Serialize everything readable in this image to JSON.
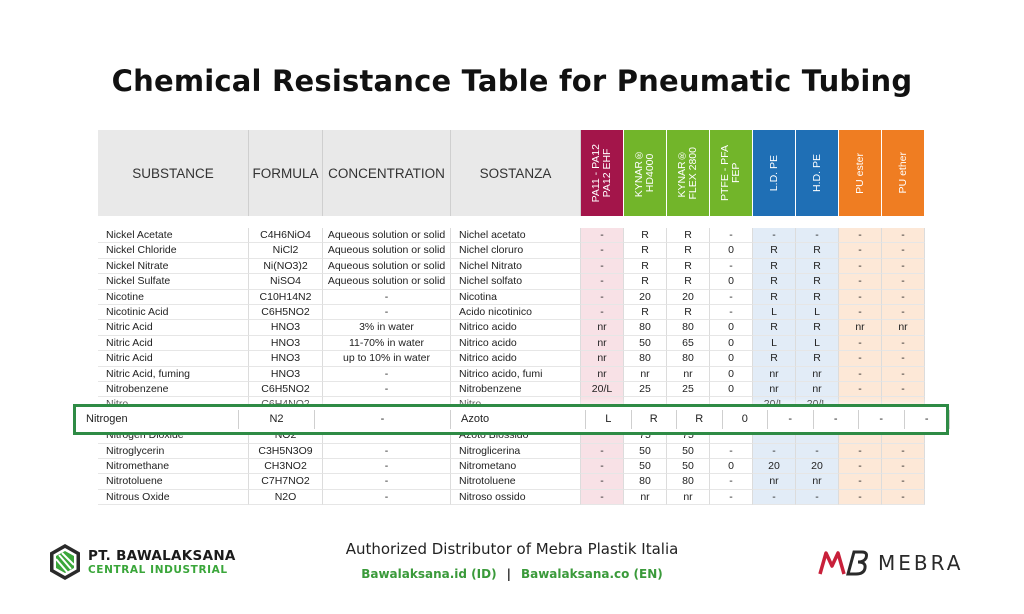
{
  "title": "Chemical Resistance Table for Pneumatic Tubing",
  "headers": {
    "substance": "SUBSTANCE",
    "formula": "FORMULA",
    "concentration": "CONCENTRATION",
    "sostanza": "SOSTANZA",
    "materials": [
      {
        "label": "PA11 - PA12\nPA12 EHF",
        "color": "#a3154a"
      },
      {
        "label": "KYNAR®\nHD4000",
        "color": "#72b52a"
      },
      {
        "label": "KYNAR®\nFLEX 2800",
        "color": "#72b52a"
      },
      {
        "label": "PTFE - PFA\nFEP",
        "color": "#72b52a"
      },
      {
        "label": "L.D. PE",
        "color": "#1f6fb5"
      },
      {
        "label": "H.D. PE",
        "color": "#1f6fb5"
      },
      {
        "label": "PU ester",
        "color": "#ef7d22"
      },
      {
        "label": "PU ether",
        "color": "#ef7d22"
      }
    ]
  },
  "column_tints": [
    "#f8e1e6",
    "#ffffff",
    "#ffffff",
    "#ffffff",
    "#e2ecf7",
    "#e2ecf7",
    "#fde8d7",
    "#fde8d7"
  ],
  "rows": [
    {
      "substance": "Nickel Acetate",
      "formula": "C4H6NiO4",
      "concentration": "Aqueous solution or solid",
      "sostanza": "Nichel acetato",
      "values": [
        "-",
        "R",
        "R",
        "-",
        "-",
        "-",
        "-",
        "-"
      ]
    },
    {
      "substance": "Nickel Chloride",
      "formula": "NiCl2",
      "concentration": "Aqueous solution or solid",
      "sostanza": "Nichel cloruro",
      "values": [
        "-",
        "R",
        "R",
        "0",
        "R",
        "R",
        "-",
        "-"
      ]
    },
    {
      "substance": "Nickel Nitrate",
      "formula": "Ni(NO3)2",
      "concentration": "Aqueous solution or solid",
      "sostanza": "Nichel Nitrato",
      "values": [
        "-",
        "R",
        "R",
        "-",
        "R",
        "R",
        "-",
        "-"
      ]
    },
    {
      "substance": "Nickel Sulfate",
      "formula": "NiSO4",
      "concentration": "Aqueous solution or solid",
      "sostanza": "Nichel solfato",
      "values": [
        "-",
        "R",
        "R",
        "0",
        "R",
        "R",
        "-",
        "-"
      ]
    },
    {
      "substance": "Nicotine",
      "formula": "C10H14N2",
      "concentration": "-",
      "sostanza": "Nicotina",
      "values": [
        "-",
        "20",
        "20",
        "-",
        "R",
        "R",
        "-",
        "-"
      ]
    },
    {
      "substance": "Nicotinic Acid",
      "formula": "C6H5NO2",
      "concentration": "-",
      "sostanza": "Acido nicotinico",
      "values": [
        "-",
        "R",
        "R",
        "-",
        "L",
        "L",
        "-",
        "-"
      ]
    },
    {
      "substance": "Nitric Acid",
      "formula": "HNO3",
      "concentration": "3% in water",
      "sostanza": "Nitrico acido",
      "values": [
        "nr",
        "80",
        "80",
        "0",
        "R",
        "R",
        "nr",
        "nr"
      ]
    },
    {
      "substance": "Nitric Acid",
      "formula": "HNO3",
      "concentration": "11-70% in water",
      "sostanza": "Nitrico acido",
      "values": [
        "nr",
        "50",
        "65",
        "0",
        "L",
        "L",
        "-",
        "-"
      ]
    },
    {
      "substance": "Nitric Acid",
      "formula": "HNO3",
      "concentration": "up to 10% in water",
      "sostanza": "Nitrico acido",
      "values": [
        "nr",
        "80",
        "80",
        "0",
        "R",
        "R",
        "-",
        "-"
      ]
    },
    {
      "substance": "Nitric Acid, fuming",
      "formula": "HNO3",
      "concentration": "-",
      "sostanza": "Nitrico acido, fumi",
      "values": [
        "nr",
        "nr",
        "nr",
        "0",
        "nr",
        "nr",
        "-",
        "-"
      ]
    },
    {
      "substance": "Nitrobenzene",
      "formula": "C6H5NO2",
      "concentration": "-",
      "sostanza": "Nitrobenzene",
      "values": [
        "20/L",
        "25",
        "25",
        "0",
        "nr",
        "nr",
        "-",
        "-"
      ]
    },
    {
      "substance": "Nitro...",
      "formula": "C6H4NO2",
      "concentration": "",
      "sostanza": "Nitro...",
      "values": [
        "",
        "",
        "",
        "",
        "20/L",
        "20/L",
        "",
        ""
      ]
    },
    {
      "substance": "",
      "formula": "",
      "concentration": "",
      "sostanza": "",
      "values": [
        "",
        "",
        "",
        "",
        "",
        "",
        "",
        ""
      ]
    },
    {
      "substance": "Nitrogen Dioxide",
      "formula": "NO2",
      "concentration": "",
      "sostanza": "Azoto Biossido",
      "values": [
        "",
        "75",
        "75",
        "",
        "",
        "",
        "",
        ""
      ]
    },
    {
      "substance": "Nitroglycerin",
      "formula": "C3H5N3O9",
      "concentration": "-",
      "sostanza": "Nitroglicerina",
      "values": [
        "-",
        "50",
        "50",
        "-",
        "-",
        "-",
        "-",
        "-"
      ]
    },
    {
      "substance": "Nitromethane",
      "formula": "CH3NO2",
      "concentration": "-",
      "sostanza": "Nitrometano",
      "values": [
        "-",
        "50",
        "50",
        "0",
        "20",
        "20",
        "-",
        "-"
      ]
    },
    {
      "substance": "Nitrotoluene",
      "formula": "C7H7NO2",
      "concentration": "-",
      "sostanza": "Nitrotoluene",
      "values": [
        "-",
        "80",
        "80",
        "-",
        "nr",
        "nr",
        "-",
        "-"
      ]
    },
    {
      "substance": "Nitrous Oxide",
      "formula": "N2O",
      "concentration": "-",
      "sostanza": "Nitroso ossido",
      "values": [
        "-",
        "nr",
        "nr",
        "-",
        "-",
        "-",
        "-",
        "-"
      ]
    }
  ],
  "highlight": {
    "substance": "Nitrogen",
    "formula": "N2",
    "concentration": "-",
    "sostanza": "Azoto",
    "values": [
      "L",
      "R",
      "R",
      "0",
      "-",
      "-",
      "-",
      "-"
    ],
    "border_color": "#2e8b45"
  },
  "footer": {
    "distributor": "Authorized Distributor of Mebra Plastik Italia",
    "link_id": "Bawalaksana.id (ID)",
    "separator": "|",
    "link_en": "Bawalaksana.co (EN)",
    "company_name": "PT. BAWALAKSANA",
    "company_sub": "CENTRAL INDUSTRIAL",
    "brand": "MEBRA"
  }
}
